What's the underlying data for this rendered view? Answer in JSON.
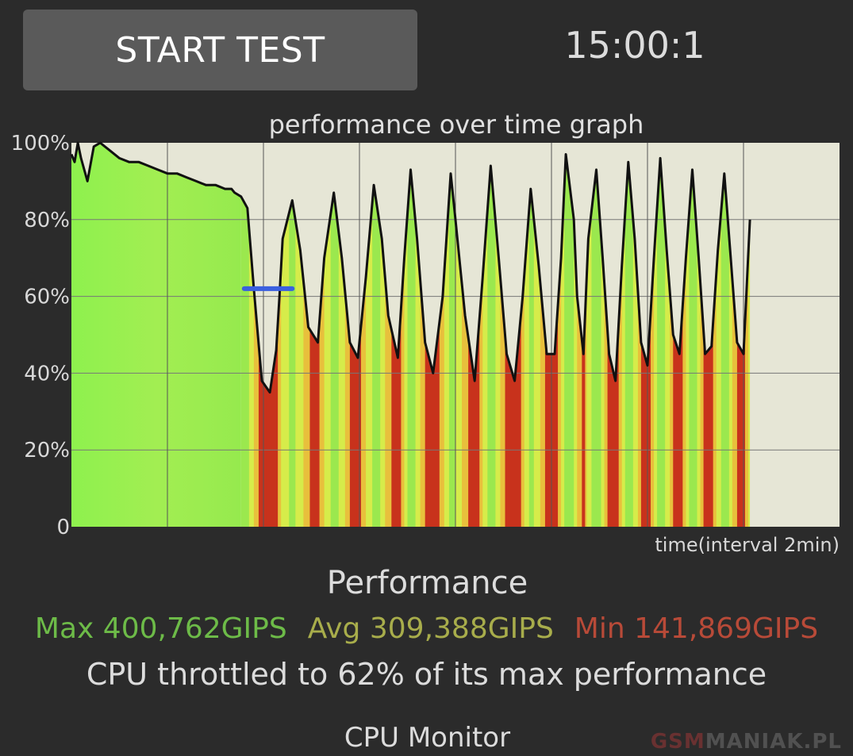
{
  "header": {
    "start_button_label": "START TEST",
    "timer": "15:00:1"
  },
  "chart_data": {
    "type": "area",
    "title": "performance over time graph",
    "xlabel": "time(interval 2min)",
    "ylabel": "",
    "ylim": [
      0,
      100
    ],
    "yticks": [
      "0",
      "20%",
      "40%",
      "60%",
      "80%",
      "100%"
    ],
    "x_range_min": [
      0,
      16
    ],
    "grid": true,
    "throttle_marker_percent": 62,
    "series": [
      {
        "x": [
          0,
          0.1,
          0.2,
          0.3,
          0.5,
          0.7,
          0.9,
          1.2,
          1.5,
          1.8,
          2.1,
          2.4,
          2.7,
          3.0,
          3.3,
          3.6,
          3.9,
          4.2,
          4.5,
          4.8,
          5.0,
          5.1,
          5.3,
          5.5,
          5.7,
          5.95,
          6.2,
          6.4,
          6.5,
          6.6,
          6.9,
          7.15,
          7.4,
          7.7,
          7.9,
          8.2,
          8.45,
          8.7,
          8.95,
          9.2,
          9.45,
          9.7,
          9.9,
          10.2,
          10.4,
          10.6,
          10.8,
          11.05,
          11.3,
          11.6,
          11.85,
          12.0,
          12.3,
          12.6,
          12.85,
          13.1,
          13.35,
          13.6,
          13.85,
          14.1,
          14.35,
          14.6,
          14.85,
          15.1,
          15.3,
          15.45,
          15.7,
          15.8,
          16.0,
          16.15,
          16.4,
          16.6,
          16.8,
          17.0,
          17.2,
          17.4,
          17.6,
          17.8,
          18.0,
          18.2,
          18.4,
          18.6,
          18.8,
          19.0,
          19.2,
          19.4,
          19.6,
          19.8,
          20.0,
          20.2,
          20.4,
          20.6,
          20.8,
          21.0,
          21.2
        ],
        "values": [
          97,
          95,
          100,
          96,
          90,
          99,
          100,
          98,
          96,
          95,
          95,
          94,
          93,
          92,
          92,
          91,
          90,
          89,
          89,
          88,
          88,
          87,
          86,
          83,
          62,
          38,
          35,
          46,
          60,
          75,
          85,
          72,
          52,
          48,
          70,
          87,
          70,
          48,
          44,
          65,
          89,
          75,
          55,
          44,
          70,
          93,
          75,
          48,
          40,
          60,
          92,
          80,
          55,
          38,
          65,
          94,
          70,
          45,
          38,
          60,
          88,
          68,
          45,
          45,
          70,
          97,
          80,
          60,
          45,
          75,
          93,
          70,
          45,
          38,
          68,
          95,
          75,
          48,
          42,
          70,
          96,
          72,
          50,
          45,
          70,
          93,
          70,
          45,
          47,
          72,
          92,
          70,
          48,
          45,
          80
        ]
      }
    ]
  },
  "performance": {
    "title": "Performance",
    "max": "Max 400,762GIPS",
    "avg": "Avg 309,388GIPS",
    "min": "Min 141,869GIPS",
    "throttle_text": "CPU throttled to 62% of its max performance"
  },
  "footer": {
    "section_title": "CPU Monitor",
    "watermark_a": "GSM",
    "watermark_b": "MANIAK.PL"
  },
  "colors": {
    "background": "#2b2b2b",
    "button": "#5a5a5a",
    "plot_bg": "#e6e6d6",
    "green": "#8ef14e",
    "yellow": "#e8e84a",
    "red": "#c8321c",
    "marker": "#3a5fe0",
    "max_text": "#6dbb48",
    "avg_text": "#a8ad4b",
    "min_text": "#b84a38"
  }
}
